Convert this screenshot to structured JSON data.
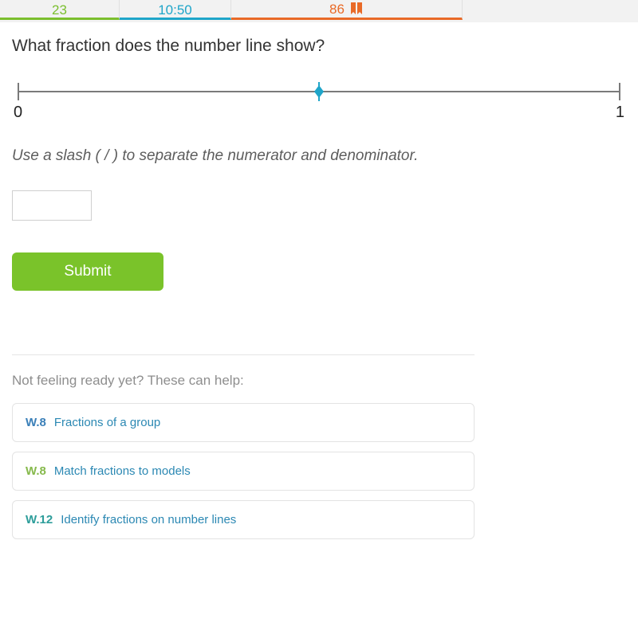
{
  "stats": {
    "questions": "23",
    "time": "10:50",
    "score": "86",
    "colors": {
      "green": "#7bbf2e",
      "blue": "#1fa5c9",
      "orange": "#e96a27"
    }
  },
  "question": {
    "text": "What fraction does the number line show?",
    "hint": "Use a slash ( / ) to separate the numerator and denominator.",
    "number_line": {
      "min_label": "0",
      "max_label": "1",
      "point_position_percent": 50,
      "point_color": "#1fa5c9",
      "line_color": "#7a7a7a"
    },
    "answer_value": "",
    "submit_label": "Submit"
  },
  "help": {
    "heading": "Not feeling ready yet? These can help:",
    "items": [
      {
        "code": "W.8",
        "title": "Fractions of a group",
        "code_color": "c-blue"
      },
      {
        "code": "W.8",
        "title": "Match fractions to models",
        "code_color": "c-green"
      },
      {
        "code": "W.12",
        "title": "Identify fractions on number lines",
        "code_color": "c-teal"
      }
    ]
  }
}
